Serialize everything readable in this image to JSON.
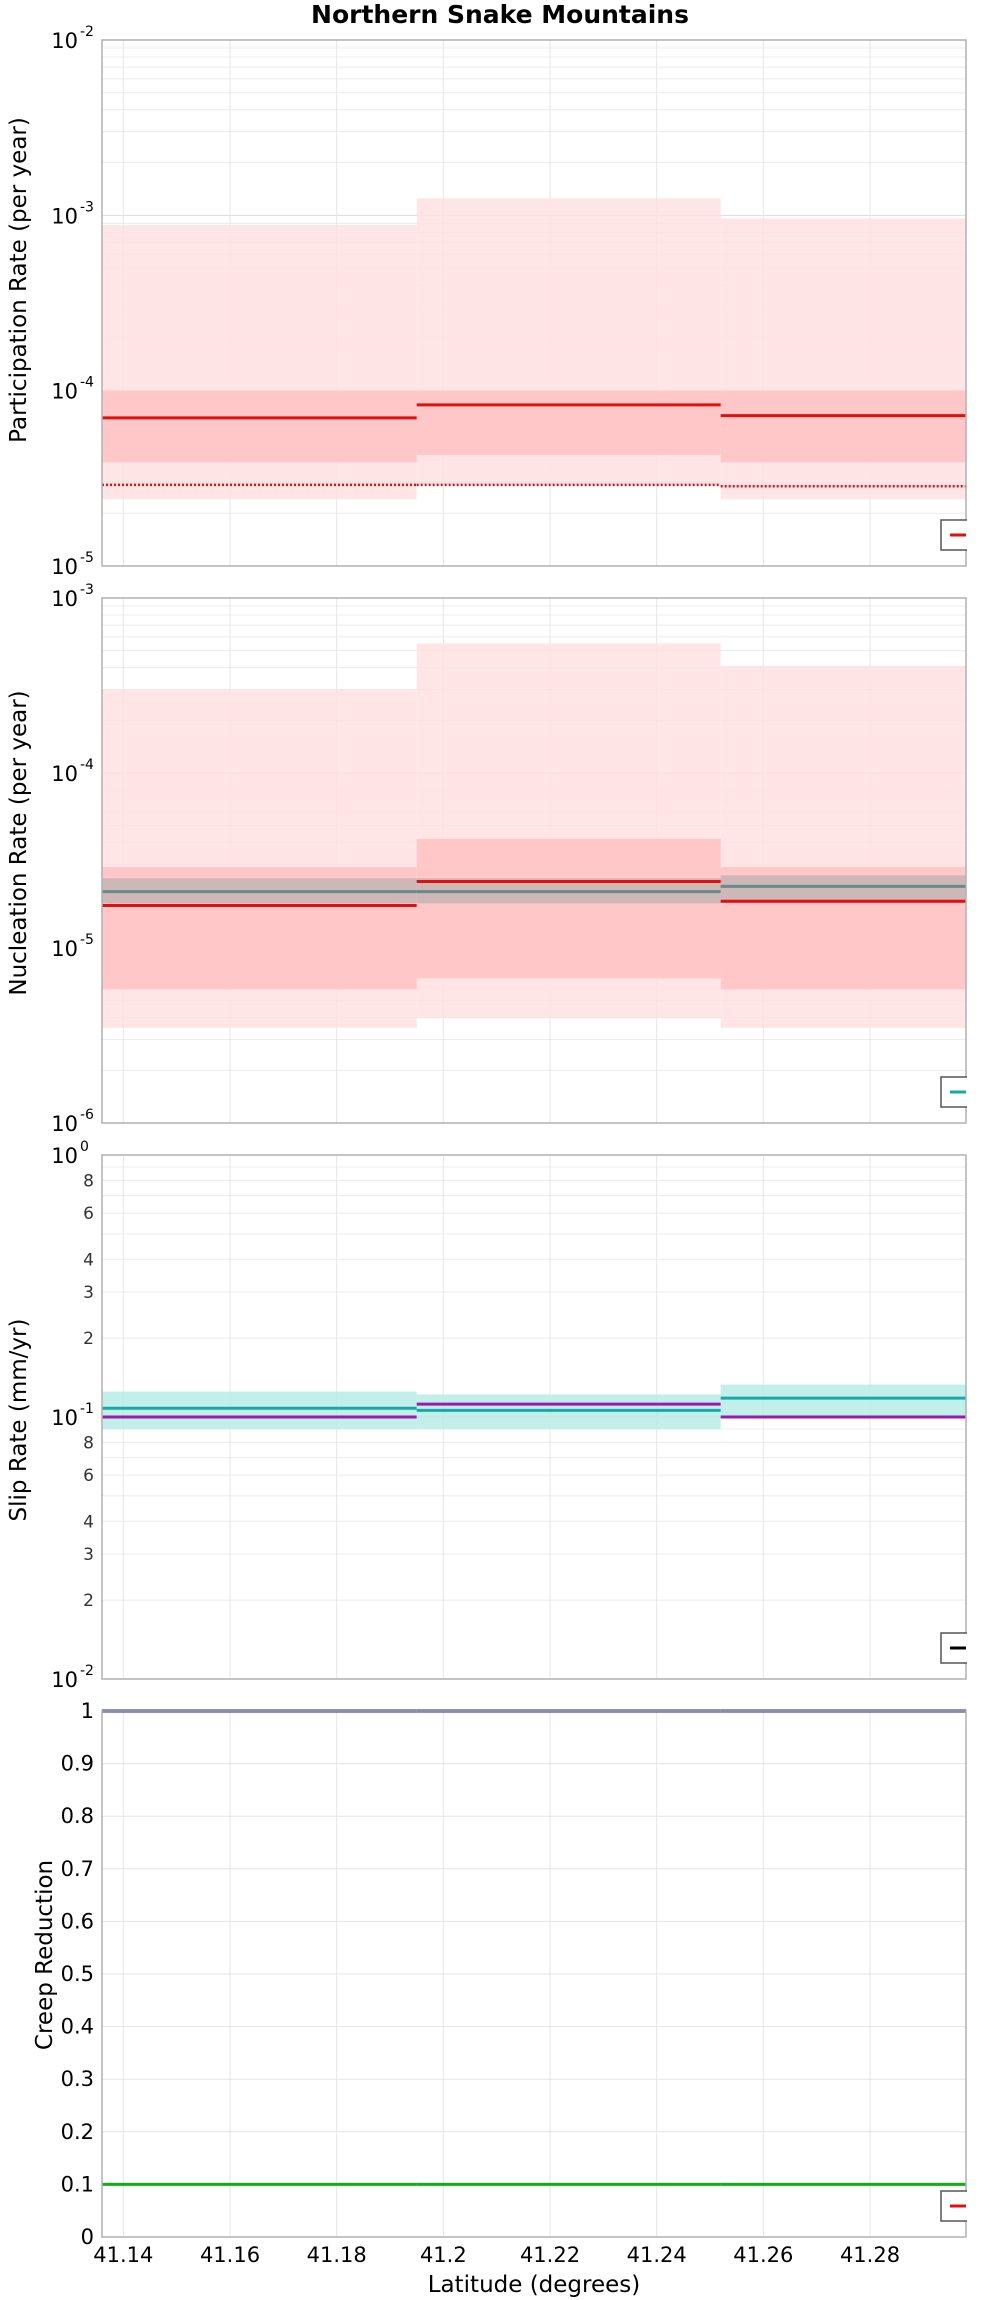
{
  "chart_data": [
    {
      "type": "line",
      "title": "Northern Snake Mountains",
      "ylabel": "Participation Rate (per year)",
      "yscale": "log",
      "ylim": [
        1e-05,
        0.01
      ],
      "xlim": [
        41.136,
        41.298
      ],
      "grid": true,
      "legend": "bottom-right",
      "bin_edges": [
        41.136,
        41.195,
        41.252,
        41.298
      ],
      "bands": [
        {
          "color": "#ffe0e0",
          "low": [
            2.4e-05,
            2.9e-05,
            2.4e-05
          ],
          "high": [
            0.00088,
            0.00125,
            0.00096
          ]
        },
        {
          "color": "#ffc2c2",
          "low": [
            3.9e-05,
            4.3e-05,
            3.9e-05
          ],
          "high": [
            0.0001,
            0.0001,
            0.0001
          ]
        }
      ],
      "series": [
        {
          "style": "solid",
          "color": "#e01010",
          "values": [
            7e-05,
            8.3e-05,
            7.2e-05
          ]
        },
        {
          "style": "dotted",
          "color": "#e01010",
          "values": [
            2.9e-05,
            2.9e-05,
            2.85e-05
          ]
        }
      ]
    },
    {
      "type": "line",
      "ylabel": "Nucleation Rate (per year)",
      "yscale": "log",
      "ylim": [
        1e-06,
        0.001
      ],
      "xlim": [
        41.136,
        41.298
      ],
      "grid": true,
      "legend": "bottom-right",
      "bin_edges": [
        41.136,
        41.195,
        41.252,
        41.298
      ],
      "bands": [
        {
          "color": "#ffe0e0",
          "low": [
            3.5e-06,
            4e-06,
            3.5e-06
          ],
          "high": [
            0.0003,
            0.00055,
            0.00041
          ]
        },
        {
          "color": "#ffc2c2",
          "low": [
            5.8e-06,
            6.7e-06,
            5.8e-06
          ],
          "high": [
            2.9e-05,
            4.2e-05,
            2.9e-05
          ]
        },
        {
          "color": "#c4b4b4",
          "low": [
            1.8e-05,
            1.8e-05,
            1.8e-05
          ],
          "high": [
            2.5e-05,
            2.5e-05,
            2.6e-05
          ]
        }
      ],
      "series": [
        {
          "style": "solid",
          "color": "#e01010",
          "values": [
            1.75e-05,
            2.4e-05,
            1.85e-05
          ]
        },
        {
          "style": "solid",
          "color": "#6a8a8a",
          "values": [
            2.1e-05,
            2.1e-05,
            2.25e-05
          ]
        }
      ]
    },
    {
      "type": "line",
      "ylabel": "Slip Rate (mm/yr)",
      "yscale": "log",
      "ylim": [
        0.01,
        1
      ],
      "xlim": [
        41.136,
        41.298
      ],
      "grid": true,
      "legend": "bottom-right",
      "bin_edges": [
        41.136,
        41.195,
        41.252,
        41.298
      ],
      "bands": [
        {
          "color": "#b8ece6",
          "low": [
            0.09,
            0.09,
            0.1
          ],
          "high": [
            0.125,
            0.122,
            0.133
          ]
        }
      ],
      "series": [
        {
          "style": "solid",
          "color": "#17a8a8",
          "values": [
            0.108,
            0.106,
            0.118
          ]
        },
        {
          "style": "solid",
          "color": "#9a1ab0",
          "values": [
            0.1,
            0.112,
            0.1
          ]
        }
      ]
    },
    {
      "type": "line",
      "ylabel": "Creep Reduction",
      "xlabel": "Latitude (degrees)",
      "yscale": "linear",
      "ylim": [
        0,
        1
      ],
      "xlim": [
        41.136,
        41.298
      ],
      "grid": true,
      "legend": "bottom-right",
      "bin_edges": [
        41.136,
        41.195,
        41.252,
        41.298
      ],
      "bands": [],
      "series": [
        {
          "style": "solid",
          "color": "#2020a0",
          "values": [
            1.0,
            1.0,
            1.0
          ]
        },
        {
          "style": "solid",
          "color": "#10b010",
          "values": [
            0.1,
            0.1,
            0.1
          ]
        }
      ]
    }
  ],
  "panels": [
    {
      "ytick_labels": [
        {
          "v": 1e-05,
          "base": "10",
          "exp": "-5"
        },
        {
          "v": 0.0001,
          "base": "10",
          "exp": "-4"
        },
        {
          "v": 0.001,
          "base": "10",
          "exp": "-3"
        },
        {
          "v": 0.01,
          "base": "10",
          "exp": "-2"
        }
      ],
      "legend_color": "#e01010"
    },
    {
      "ytick_labels": [
        {
          "v": 1e-06,
          "base": "10",
          "exp": "-6"
        },
        {
          "v": 1e-05,
          "base": "10",
          "exp": "-5"
        },
        {
          "v": 0.0001,
          "base": "10",
          "exp": "-4"
        },
        {
          "v": 0.001,
          "base": "10",
          "exp": "-3"
        }
      ],
      "legend_color": "#17a8a8"
    },
    {
      "ytick_labels": [
        {
          "v": 0.01,
          "base": "10",
          "exp": "-2"
        },
        {
          "v": 0.1,
          "base": "10",
          "exp": "-1"
        },
        {
          "v": 1,
          "base": "10",
          "exp": "0"
        }
      ],
      "ytick_minor_labels": [
        {
          "v": 0.02,
          "t": "2"
        },
        {
          "v": 0.03,
          "t": "3"
        },
        {
          "v": 0.04,
          "t": "4"
        },
        {
          "v": 0.06,
          "t": "6"
        },
        {
          "v": 0.08,
          "t": "8"
        },
        {
          "v": 0.2,
          "t": "2"
        },
        {
          "v": 0.3,
          "t": "3"
        },
        {
          "v": 0.4,
          "t": "4"
        },
        {
          "v": 0.6,
          "t": "6"
        },
        {
          "v": 0.8,
          "t": "8"
        }
      ],
      "legend_color": "#000000"
    },
    {
      "ytick_labels": [
        {
          "v": 0,
          "t": "0"
        },
        {
          "v": 0.1,
          "t": "0.1"
        },
        {
          "v": 0.2,
          "t": "0.2"
        },
        {
          "v": 0.3,
          "t": "0.3"
        },
        {
          "v": 0.4,
          "t": "0.4"
        },
        {
          "v": 0.5,
          "t": "0.5"
        },
        {
          "v": 0.6,
          "t": "0.6"
        },
        {
          "v": 0.7,
          "t": "0.7"
        },
        {
          "v": 0.8,
          "t": "0.8"
        },
        {
          "v": 0.9,
          "t": "0.9"
        },
        {
          "v": 1,
          "t": "1"
        }
      ],
      "legend_color": "#e01010"
    }
  ],
  "x_ticks": [
    {
      "v": 41.14,
      "t": "41.14"
    },
    {
      "v": 41.16,
      "t": "41.16"
    },
    {
      "v": 41.18,
      "t": "41.18"
    },
    {
      "v": 41.2,
      "t": "41.2"
    },
    {
      "v": 41.22,
      "t": "41.22"
    },
    {
      "v": 41.24,
      "t": "41.24"
    },
    {
      "v": 41.26,
      "t": "41.26"
    },
    {
      "v": 41.28,
      "t": "41.28"
    }
  ]
}
